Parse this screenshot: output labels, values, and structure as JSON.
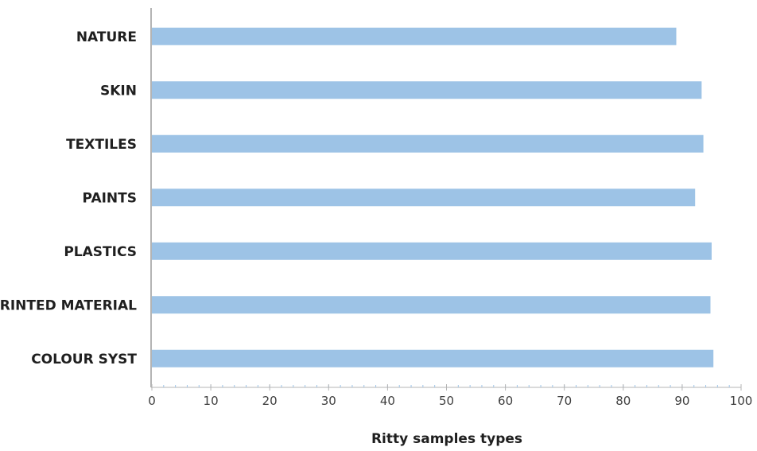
{
  "chart_data": {
    "type": "bar",
    "orientation": "horizontal",
    "categories": [
      "NATURE",
      "SKIN",
      "TEXTILES",
      "PAINTS",
      "PLASTICS",
      "PRINTED MATERIAL",
      "COLOUR SYST"
    ],
    "values": [
      89,
      93.3,
      93.6,
      92.2,
      95,
      94.8,
      95.3
    ],
    "title": "",
    "xlabel": "Ritty samples types",
    "ylabel": "",
    "xlim": [
      0,
      100
    ],
    "xticks": [
      "0",
      "10",
      "20",
      "30",
      "40",
      "50",
      "60",
      "70",
      "80",
      "90",
      "100"
    ],
    "grid": false,
    "legend": "none",
    "colors": {
      "bar": "#9dc3e6",
      "axis": "#b4b4b4",
      "minor_tick": "#9dc3e6"
    }
  }
}
